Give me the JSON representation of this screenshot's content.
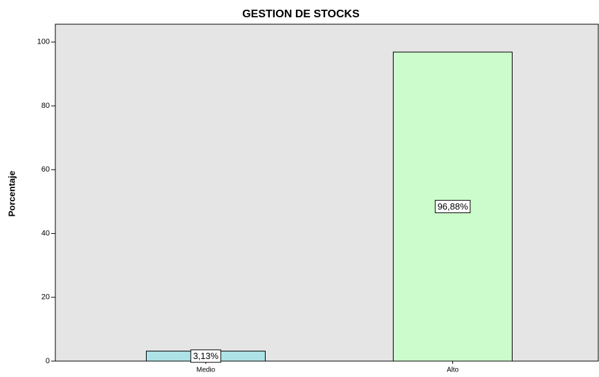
{
  "chart_data": {
    "type": "bar",
    "title": "GESTION DE STOCKS",
    "y_label": "Porcentaje",
    "categories": [
      "Medio",
      "Alto"
    ],
    "values": [
      3.13,
      96.88
    ],
    "value_labels": [
      "3,13%",
      "96,88%"
    ],
    "colors": [
      "#ade3e6",
      "#ccfccc"
    ],
    "ylim": [
      0,
      105.6
    ],
    "yticks": [
      0,
      20,
      40,
      60,
      80,
      100
    ]
  }
}
